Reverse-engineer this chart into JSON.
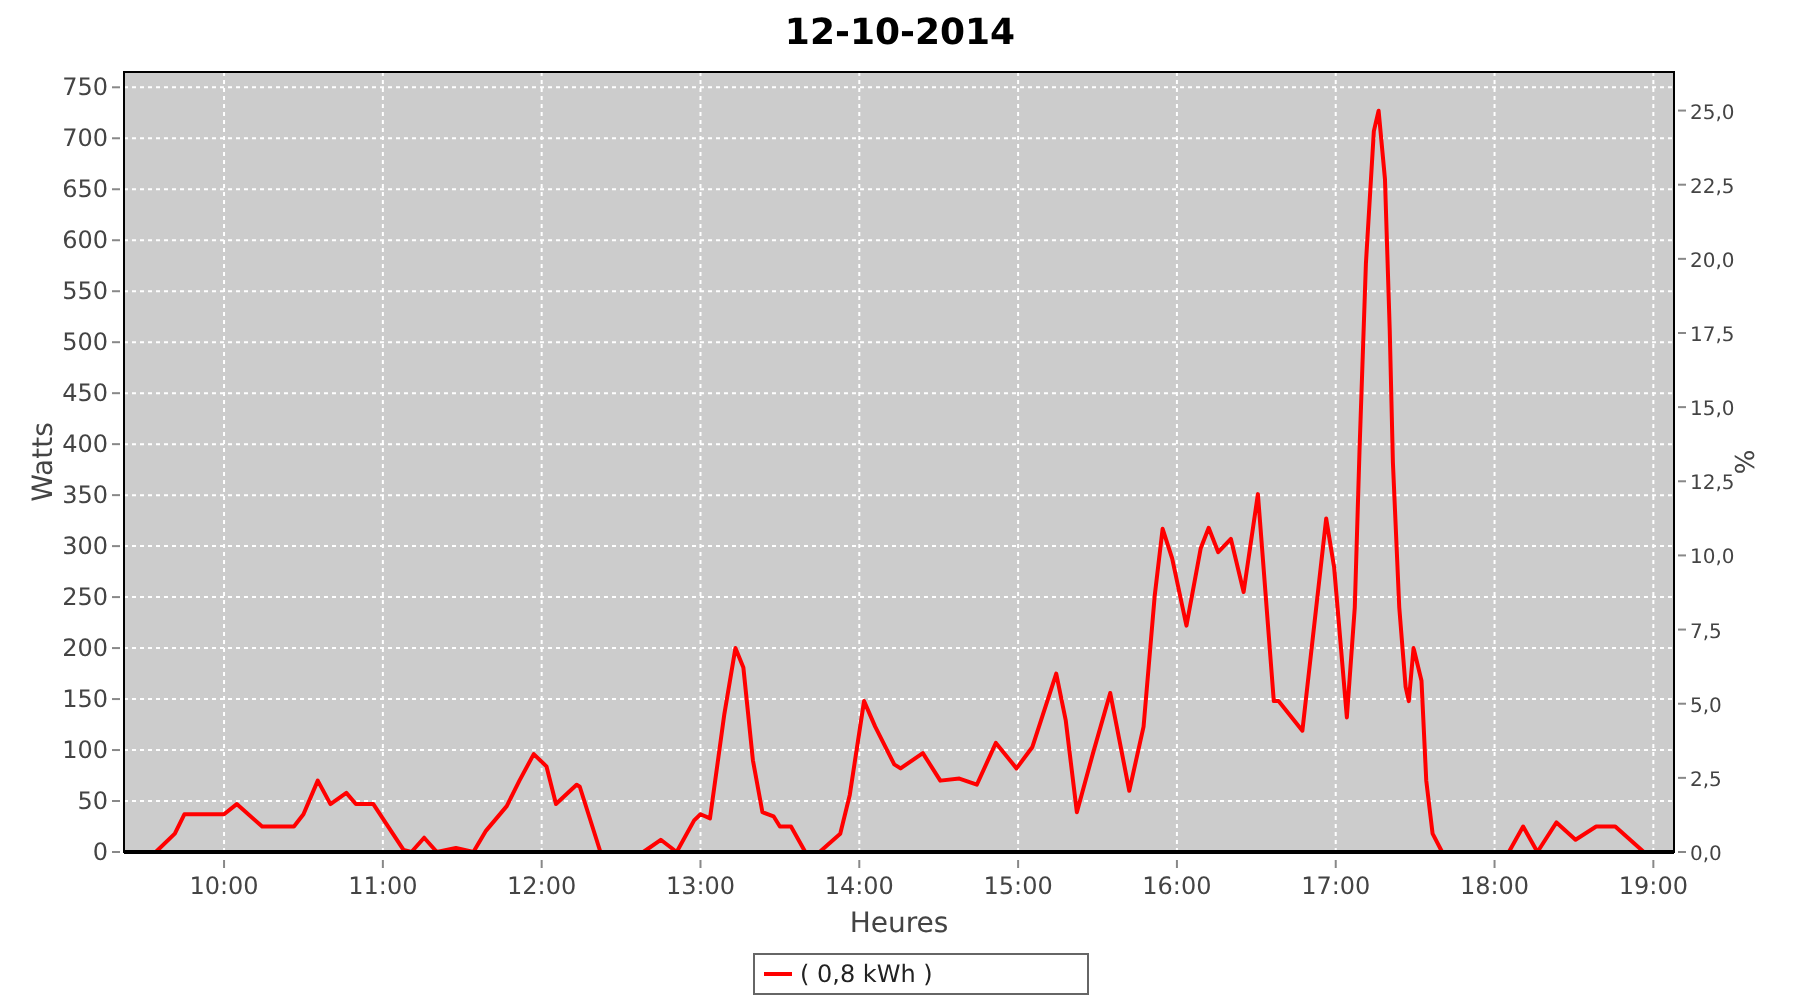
{
  "chart_data": {
    "type": "line",
    "title": "12-10-2014",
    "xlabel": "Heures",
    "ylabel": "Watts",
    "y2label": "%",
    "xlim": [
      9.37,
      19.13
    ],
    "xticks": [
      {
        "value": 10,
        "label": "10:00"
      },
      {
        "value": 11,
        "label": "11:00"
      },
      {
        "value": 12,
        "label": "12:00"
      },
      {
        "value": 13,
        "label": "13:00"
      },
      {
        "value": 14,
        "label": "14:00"
      },
      {
        "value": 15,
        "label": "15:00"
      },
      {
        "value": 16,
        "label": "16:00"
      },
      {
        "value": 17,
        "label": "17:00"
      },
      {
        "value": 18,
        "label": "18:00"
      },
      {
        "value": 19,
        "label": "19:00"
      }
    ],
    "ylim": [
      0,
      765
    ],
    "yticks": [
      0,
      50,
      100,
      150,
      200,
      250,
      300,
      350,
      400,
      450,
      500,
      550,
      600,
      650,
      700,
      750
    ],
    "y2lim": [
      0,
      26.3
    ],
    "y2ticks": [
      {
        "value": 0,
        "label": "0,0"
      },
      {
        "value": 2.5,
        "label": "2,5"
      },
      {
        "value": 5,
        "label": "5,0"
      },
      {
        "value": 7.5,
        "label": "7,5"
      },
      {
        "value": 10,
        "label": "10,0"
      },
      {
        "value": 12.5,
        "label": "12,5"
      },
      {
        "value": 15,
        "label": "15,0"
      },
      {
        "value": 17.5,
        "label": "17,5"
      },
      {
        "value": 20,
        "label": "20,0"
      },
      {
        "value": 22.5,
        "label": "22,5"
      },
      {
        "value": 25,
        "label": "25,0"
      }
    ],
    "grid": true,
    "legend": "bottom",
    "marker": "none",
    "line_style": "solid",
    "x": [
      9.57,
      9.69,
      9.75,
      10.0,
      10.08,
      10.24,
      10.44,
      10.5,
      10.59,
      10.67,
      10.77,
      10.83,
      10.94,
      11.05,
      11.13,
      11.18,
      11.26,
      11.34,
      11.46,
      11.57,
      11.65,
      11.78,
      11.86,
      11.95,
      12.03,
      12.09,
      12.22,
      12.24,
      12.37,
      12.64,
      12.75,
      12.85,
      12.96,
      13.0,
      13.06,
      13.15,
      13.22,
      13.27,
      13.33,
      13.39,
      13.46,
      13.5,
      13.57,
      13.66,
      13.75,
      13.88,
      13.94,
      14.03,
      14.1,
      14.22,
      14.26,
      14.4,
      14.51,
      14.63,
      14.74,
      14.86,
      14.99,
      15.09,
      15.24,
      15.3,
      15.37,
      15.47,
      15.58,
      15.7,
      15.79,
      15.86,
      15.91,
      15.97,
      16.06,
      16.15,
      16.2,
      16.26,
      16.34,
      16.42,
      16.51,
      16.61,
      16.64,
      16.79,
      16.94,
      16.99,
      17.07,
      17.12,
      17.15,
      17.19,
      17.24,
      17.27,
      17.31,
      17.34,
      17.36,
      17.4,
      17.44,
      17.46,
      17.49,
      17.54,
      17.57,
      17.61,
      17.67,
      17.99,
      18.09,
      18.18,
      18.27,
      18.39,
      18.51,
      18.64,
      18.76,
      18.94
    ],
    "series": [
      {
        "name": "( 0,8 kWh )",
        "color": "#ff0000",
        "values": [
          0,
          18,
          37,
          37,
          47,
          25,
          25,
          37,
          70,
          47,
          58,
          47,
          47,
          21,
          2,
          0,
          14,
          0,
          4,
          0,
          21,
          45,
          70,
          96,
          84,
          47,
          66,
          64,
          0,
          0,
          12,
          0,
          31,
          37,
          33,
          135,
          200,
          181,
          90,
          39,
          35,
          25,
          25,
          0,
          0,
          18,
          56,
          148,
          123,
          86,
          82,
          97,
          70,
          72,
          66,
          107,
          82,
          103,
          175,
          129,
          39,
          96,
          156,
          60,
          123,
          251,
          317,
          288,
          222,
          298,
          318,
          294,
          307,
          255,
          351,
          148,
          148,
          119,
          327,
          279,
          132,
          240,
          395,
          577,
          707,
          727,
          660,
          512,
          382,
          240,
          162,
          148,
          200,
          168,
          70,
          18,
          0,
          0,
          0,
          25,
          0,
          29,
          12,
          25,
          25,
          0
        ]
      }
    ]
  }
}
